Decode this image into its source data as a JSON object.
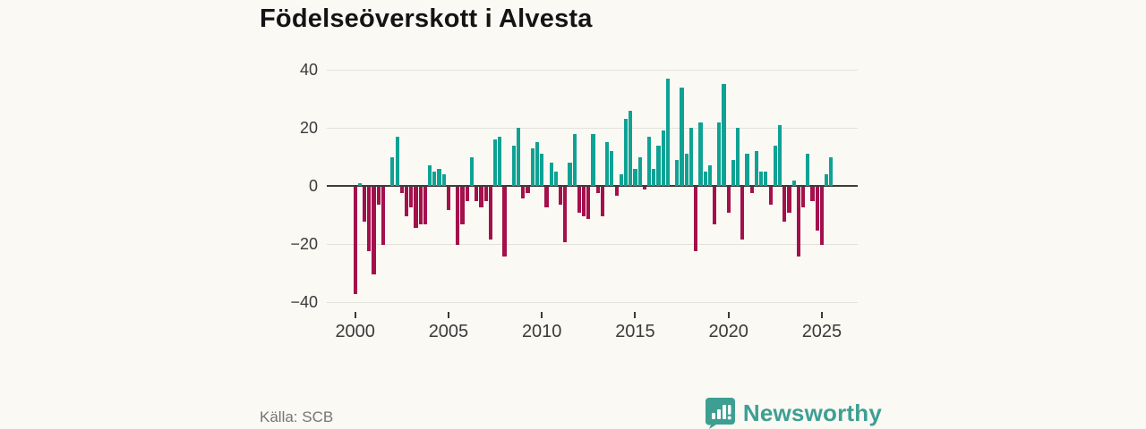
{
  "title": "Födelseöverskott i Alvesta",
  "source": "Källa: SCB",
  "brand": {
    "name": "Newsworthy",
    "color": "#3d9f92",
    "logo_icon": "bar-chart-speech-bubble"
  },
  "chart_data": {
    "type": "bar",
    "title": "Födelseöverskott i Alvesta",
    "xlabel": "",
    "ylabel": "",
    "x_unit": "quarter",
    "start_year": 2000,
    "start_quarter": 1,
    "end_label": "2025Q3",
    "values": [
      -37,
      1,
      -12,
      -22,
      -30,
      -6,
      -20,
      0,
      10,
      17,
      -2,
      -10,
      -7,
      -14,
      -13,
      -13,
      7,
      5,
      6,
      4,
      -8,
      0,
      -20,
      -13,
      -5,
      10,
      -5,
      -7,
      -5,
      -18,
      16,
      17,
      -24,
      0,
      14,
      20,
      -4,
      -2,
      13,
      15,
      11,
      -7,
      8,
      5,
      -6,
      -19,
      8,
      18,
      -9,
      -10,
      -11,
      18,
      -2,
      -10,
      15,
      12,
      -3,
      4,
      23,
      26,
      6,
      10,
      -1,
      17,
      6,
      14,
      19,
      37,
      0,
      9,
      34,
      11,
      20,
      -22,
      22,
      5,
      7,
      -13,
      22,
      35,
      -9,
      9,
      20,
      -18,
      11,
      -2,
      12,
      5,
      5,
      -6,
      14,
      21,
      -12,
      -9,
      2,
      -24,
      -7,
      11,
      -5,
      -15,
      -20,
      4,
      10
    ],
    "ylim": [
      -40,
      40
    ],
    "y_ticks": [
      {
        "value": 40,
        "label": "40"
      },
      {
        "value": 20,
        "label": "20"
      },
      {
        "value": 0,
        "label": "0"
      },
      {
        "value": -20,
        "label": "−20"
      },
      {
        "value": -40,
        "label": "−40"
      }
    ],
    "x_ticks": [
      {
        "year": 2000,
        "label": "2000"
      },
      {
        "year": 2005,
        "label": "2005"
      },
      {
        "year": 2010,
        "label": "2010"
      },
      {
        "year": 2015,
        "label": "2015"
      },
      {
        "year": 2020,
        "label": "2020"
      },
      {
        "year": 2025,
        "label": "2025"
      }
    ],
    "grid": true,
    "legend": "none",
    "colors": {
      "positive": "#0fa294",
      "negative": "#a4104c"
    }
  }
}
